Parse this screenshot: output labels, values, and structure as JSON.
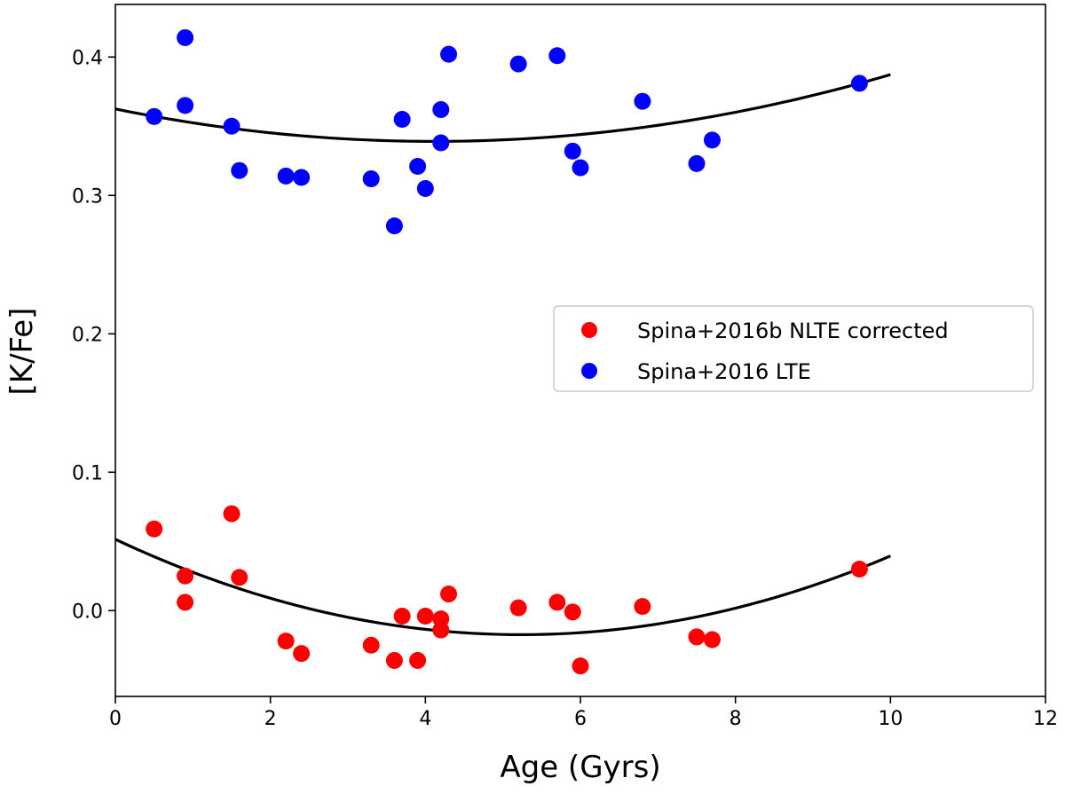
{
  "chart_data": {
    "type": "scatter",
    "xlabel": "Age (Gyrs)",
    "ylabel": "[K/Fe]",
    "xlim": [
      0,
      12
    ],
    "ylim": [
      -0.062,
      0.438
    ],
    "xticks": [
      0,
      2,
      4,
      6,
      8,
      10,
      12
    ],
    "xtick_labels": [
      "0",
      "2",
      "4",
      "6",
      "8",
      "10",
      "12"
    ],
    "yticks": [
      0.0,
      0.1,
      0.2,
      0.3,
      0.4
    ],
    "ytick_labels": [
      "0.0",
      "0.1",
      "0.2",
      "0.3",
      "0.4"
    ],
    "grid": false,
    "legend_position": "center-right",
    "series": [
      {
        "name": "Spina+2016b NLTE corrected",
        "color": "#ff0000",
        "points": [
          [
            0.5,
            0.059
          ],
          [
            0.9,
            0.025
          ],
          [
            0.9,
            0.006
          ],
          [
            1.5,
            0.07
          ],
          [
            1.6,
            0.024
          ],
          [
            2.2,
            -0.022
          ],
          [
            2.4,
            -0.031
          ],
          [
            3.3,
            -0.025
          ],
          [
            3.6,
            -0.036
          ],
          [
            3.7,
            -0.004
          ],
          [
            3.9,
            -0.036
          ],
          [
            4.0,
            -0.004
          ],
          [
            4.2,
            -0.006
          ],
          [
            4.2,
            -0.014
          ],
          [
            4.3,
            0.012
          ],
          [
            5.2,
            0.002
          ],
          [
            5.7,
            0.006
          ],
          [
            5.9,
            -0.001
          ],
          [
            6.0,
            -0.04
          ],
          [
            6.8,
            0.003
          ],
          [
            7.5,
            -0.019
          ],
          [
            7.7,
            -0.021
          ],
          [
            9.6,
            0.03
          ]
        ]
      },
      {
        "name": "Spina+2016 LTE",
        "color": "#0000ff",
        "points": [
          [
            0.5,
            0.357
          ],
          [
            0.9,
            0.414
          ],
          [
            0.9,
            0.365
          ],
          [
            1.5,
            0.35
          ],
          [
            1.6,
            0.318
          ],
          [
            2.2,
            0.314
          ],
          [
            2.4,
            0.313
          ],
          [
            3.3,
            0.312
          ],
          [
            3.6,
            0.278
          ],
          [
            3.7,
            0.355
          ],
          [
            3.9,
            0.321
          ],
          [
            4.0,
            0.305
          ],
          [
            4.2,
            0.362
          ],
          [
            4.2,
            0.338
          ],
          [
            4.3,
            0.402
          ],
          [
            5.2,
            0.395
          ],
          [
            5.7,
            0.401
          ],
          [
            5.9,
            0.332
          ],
          [
            6.0,
            0.32
          ],
          [
            6.8,
            0.368
          ],
          [
            7.5,
            0.323
          ],
          [
            7.7,
            0.34
          ],
          [
            9.6,
            0.381
          ]
        ]
      }
    ],
    "fits": [
      {
        "name": "NLTE quadratic fit",
        "color": "#000000",
        "x_range": [
          0,
          10
        ],
        "coefficients": [
          0.0515,
          -0.0263,
          0.00251
        ]
      },
      {
        "name": "LTE quadratic fit",
        "color": "#000000",
        "x_range": [
          0,
          10
        ],
        "coefficients": [
          0.3625,
          -0.01142,
          0.00139
        ]
      }
    ]
  }
}
